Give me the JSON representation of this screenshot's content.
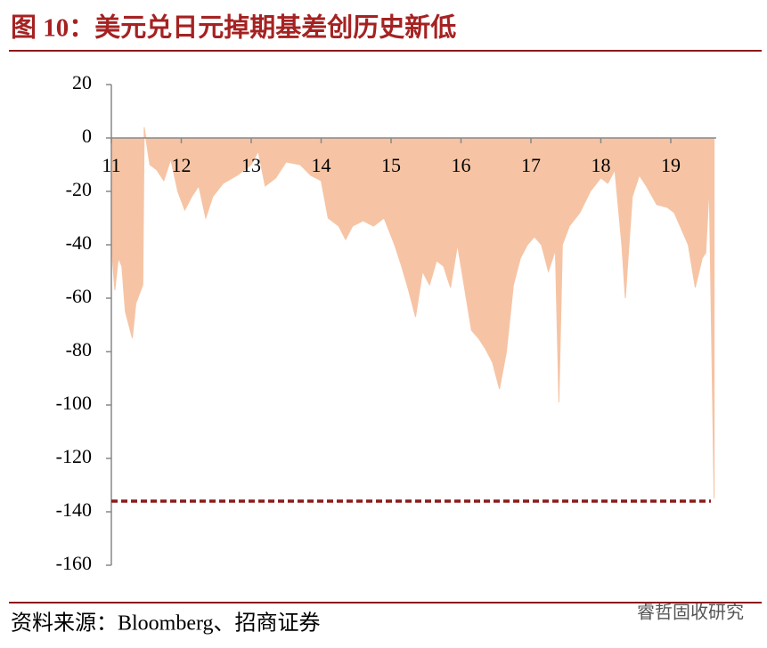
{
  "chart_data": {
    "type": "area",
    "title": "图 10：美元兑日元掉期基差创历史新低",
    "source": "资料来源：Bloomberg、招商证券",
    "watermark": "睿哲固收研究",
    "color": "#f6c4a4",
    "ref_line": {
      "value": -136,
      "color": "#8b1a1a"
    },
    "x": [
      2011.0,
      2011.05,
      2011.1,
      2011.15,
      2011.2,
      2011.3,
      2011.35,
      2011.45,
      2011.47,
      2011.55,
      2011.65,
      2011.75,
      2011.85,
      2011.95,
      2012.05,
      2012.15,
      2012.25,
      2012.35,
      2012.45,
      2012.6,
      2012.8,
      2013.0,
      2013.1,
      2013.2,
      2013.35,
      2013.5,
      2013.7,
      2013.85,
      2014.0,
      2014.1,
      2014.25,
      2014.35,
      2014.45,
      2014.6,
      2014.75,
      2014.9,
      2015.05,
      2015.15,
      2015.25,
      2015.35,
      2015.45,
      2015.55,
      2015.65,
      2015.75,
      2015.85,
      2015.95,
      2016.05,
      2016.15,
      2016.25,
      2016.35,
      2016.45,
      2016.55,
      2016.65,
      2016.75,
      2016.85,
      2016.95,
      2017.05,
      2017.15,
      2017.25,
      2017.35,
      2017.4,
      2017.45,
      2017.55,
      2017.7,
      2017.85,
      2018.0,
      2018.1,
      2018.2,
      2018.3,
      2018.35,
      2018.45,
      2018.55,
      2018.65,
      2018.8,
      2018.95,
      2019.05,
      2019.15,
      2019.25,
      2019.35,
      2019.45,
      2019.5,
      2019.55,
      2019.62
    ],
    "values": [
      -40,
      -57,
      -45,
      -48,
      -65,
      -75,
      -62,
      -55,
      4,
      -10,
      -12,
      -16,
      -8,
      -20,
      -27,
      -22,
      -18,
      -30,
      -22,
      -17,
      -14,
      -10,
      -5,
      -18,
      -15,
      -9,
      -10,
      -14,
      -16,
      -30,
      -33,
      -38,
      -33,
      -31,
      -33,
      -30,
      -40,
      -48,
      -57,
      -67,
      -50,
      -55,
      -46,
      -48,
      -56,
      -40,
      -56,
      -72,
      -75,
      -79,
      -84,
      -94,
      -80,
      -55,
      -45,
      -40,
      -37,
      -40,
      -50,
      -42,
      -99,
      -40,
      -33,
      -28,
      -20,
      -15,
      -17,
      -12,
      -40,
      -60,
      -22,
      -14,
      -18,
      -25,
      -26,
      -28,
      -34,
      -40,
      -56,
      -45,
      -43,
      -18,
      -135
    ],
    "xlim": [
      2011.0,
      2019.65
    ],
    "xticks": [
      {
        "value": 2011,
        "label": "11"
      },
      {
        "value": 2012,
        "label": "12"
      },
      {
        "value": 2013,
        "label": "13"
      },
      {
        "value": 2014,
        "label": "14"
      },
      {
        "value": 2015,
        "label": "15"
      },
      {
        "value": 2016,
        "label": "16"
      },
      {
        "value": 2017,
        "label": "17"
      },
      {
        "value": 2018,
        "label": "18"
      },
      {
        "value": 2019,
        "label": "19"
      }
    ],
    "ylim": [
      -160,
      20
    ],
    "yticks": [
      -160,
      -140,
      -120,
      -100,
      -80,
      -60,
      -40,
      -20,
      0,
      20
    ]
  }
}
